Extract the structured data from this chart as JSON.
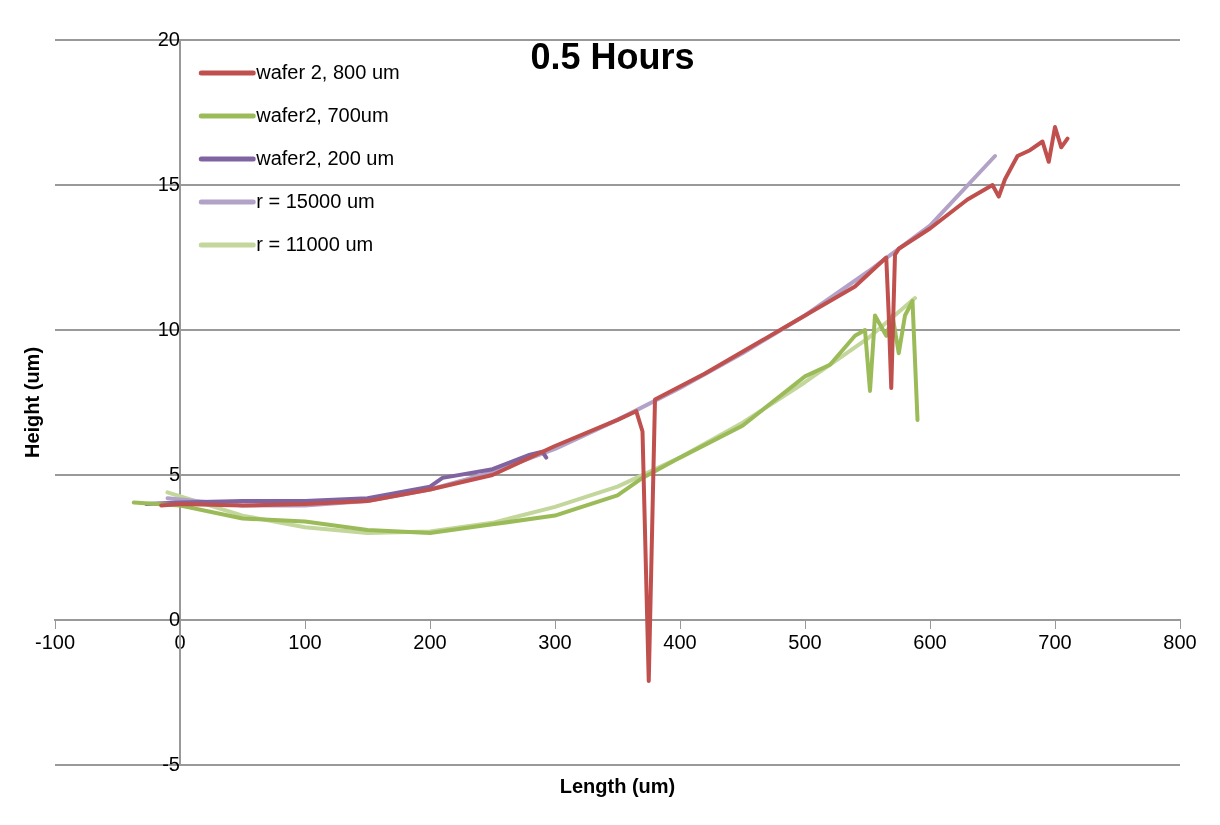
{
  "chart_data": {
    "type": "line",
    "title": "0.5 Hours",
    "xlabel": "Length (um)",
    "ylabel": "Height (um)",
    "xlim": [
      -100,
      800
    ],
    "xticks": [
      -100,
      0,
      100,
      200,
      300,
      400,
      500,
      600,
      700,
      800
    ],
    "ylim": [
      -5,
      20
    ],
    "yticks": [
      -5,
      0,
      5,
      10,
      15,
      20
    ],
    "grid": "y",
    "legend": "top left",
    "marker": "none",
    "line_style": "solid",
    "series": [
      {
        "name": "wafer 2, 800 um",
        "color": "#c0504d",
        "x": [
          -15,
          0,
          50,
          100,
          150,
          200,
          250,
          300,
          350,
          365,
          370,
          375,
          380,
          420,
          460,
          500,
          540,
          565,
          567,
          569,
          572,
          575,
          600,
          630,
          650,
          655,
          660,
          670,
          680,
          690,
          695,
          700,
          705,
          710
        ],
        "values": [
          3.95,
          4.0,
          3.95,
          4.0,
          4.1,
          4.5,
          5.0,
          6.0,
          6.9,
          7.2,
          6.5,
          -2.1,
          7.6,
          8.5,
          9.5,
          10.5,
          11.5,
          12.5,
          10.5,
          8.0,
          12.6,
          12.8,
          13.5,
          14.5,
          15.0,
          14.6,
          15.2,
          16.0,
          16.2,
          16.5,
          15.8,
          17.0,
          16.3,
          16.6
        ]
      },
      {
        "name": "wafer2, 700um",
        "color": "#9bbb59",
        "x": [
          -37,
          0,
          50,
          100,
          150,
          200,
          250,
          300,
          350,
          370,
          400,
          450,
          500,
          520,
          540,
          548,
          552,
          556,
          565,
          570,
          575,
          580,
          586,
          590
        ],
        "values": [
          4.05,
          3.95,
          3.5,
          3.4,
          3.1,
          3.0,
          3.3,
          3.6,
          4.3,
          4.9,
          5.6,
          6.7,
          8.4,
          8.8,
          9.8,
          10.0,
          7.9,
          10.5,
          9.8,
          10.5,
          9.2,
          10.5,
          11.0,
          6.9
        ]
      },
      {
        "name": "wafer2, 200 um",
        "color": "#8064a2",
        "x": [
          -27,
          0,
          50,
          100,
          150,
          200,
          210,
          250,
          280,
          290,
          293
        ],
        "values": [
          4.0,
          4.05,
          4.1,
          4.1,
          4.2,
          4.6,
          4.9,
          5.2,
          5.7,
          5.8,
          5.6
        ]
      },
      {
        "name": "r = 15000 um",
        "color": "#b3a2c7",
        "x": [
          -10,
          50,
          100,
          150,
          200,
          250,
          300,
          350,
          400,
          450,
          500,
          550,
          600,
          652
        ],
        "values": [
          4.2,
          3.95,
          3.95,
          4.1,
          4.5,
          5.1,
          5.9,
          6.9,
          8.0,
          9.2,
          10.5,
          12.0,
          13.6,
          16.0
        ]
      },
      {
        "name": "r = 11000 um",
        "color": "#c3d69b",
        "x": [
          -10,
          50,
          100,
          150,
          200,
          250,
          300,
          350,
          400,
          450,
          500,
          550,
          588
        ],
        "values": [
          4.4,
          3.6,
          3.2,
          3.0,
          3.05,
          3.35,
          3.9,
          4.6,
          5.6,
          6.8,
          8.2,
          9.7,
          11.1
        ]
      }
    ]
  }
}
